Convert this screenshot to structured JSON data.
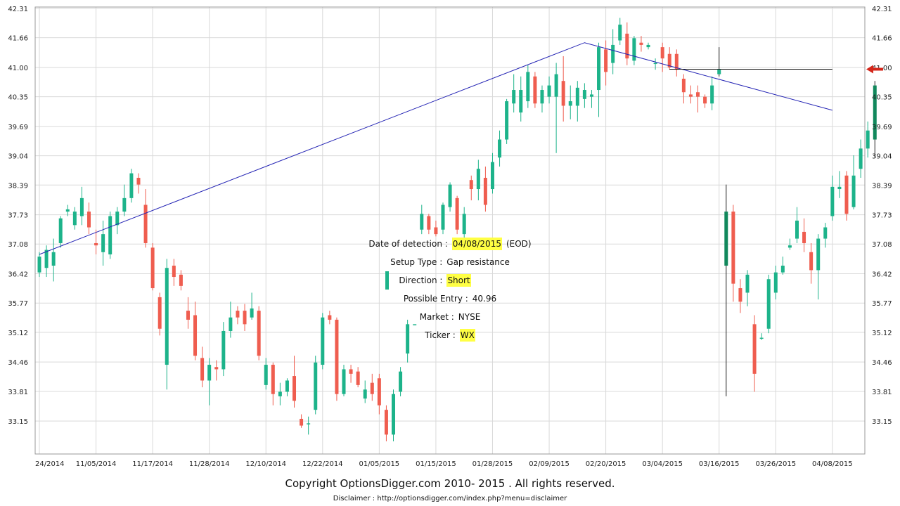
{
  "colors": {
    "up": "#1db38a",
    "down": "#ef5d4f",
    "line": "#2323b4",
    "grid": "#d9d9d9",
    "arrow": "#d4271b",
    "highlight": "#ffff44",
    "recent_up": "#11885c"
  },
  "info": {
    "date_label": "Date of detection :",
    "date_value": "04/08/2015",
    "date_suffix": "(EOD)",
    "setup_label": "Setup Type :",
    "setup_value": "Gap resistance",
    "direction_label": "Direction :",
    "direction_value": "Short",
    "entry_label": "Possible Entry :",
    "entry_value": "40.96",
    "market_label": "Market :",
    "market_value": "NYSE",
    "ticker_label": "Ticker :",
    "ticker_value": "WX"
  },
  "footer": {
    "copyright": "Copyright OptionsDigger.com 2010- 2015 . All rights reserved.",
    "disclaimer": "Disclaimer : http://optionsdigger.com/index.php?menu=disclaimer"
  },
  "chart_data": {
    "type": "candlestick",
    "title": "",
    "ylim": [
      32.5,
      42.31
    ],
    "y_ticks": [
      "42.31",
      "41.66",
      "41.00",
      "40.35",
      "39.69",
      "39.04",
      "38.39",
      "37.73",
      "37.08",
      "36.42",
      "35.77",
      "35.12",
      "34.46",
      "33.81",
      "33.15"
    ],
    "x_tick_labels": [
      "24/2014",
      "11/05/2014",
      "11/17/2014",
      "11/28/2014",
      "12/10/2014",
      "12/22/2014",
      "01/05/2015",
      "01/15/2015",
      "01/28/2015",
      "02/09/2015",
      "02/20/2015",
      "03/04/2015",
      "03/16/2015",
      "03/26/2015",
      "04/08/2015"
    ],
    "x_tick_index": [
      0,
      8,
      16,
      24,
      32,
      40,
      48,
      56,
      64,
      72,
      80,
      88,
      96,
      104,
      112
    ],
    "grid": true,
    "resistance_level": 40.96,
    "trendline": [
      [
        0,
        36.85
      ],
      [
        77,
        41.55
      ],
      [
        112,
        40.05
      ]
    ],
    "candles": [
      [
        36.45,
        36.8,
        36.9,
        36.35
      ],
      [
        36.55,
        36.95,
        37.05,
        36.35
      ],
      [
        36.6,
        36.9,
        37.2,
        36.25
      ],
      [
        37.1,
        37.65,
        37.7,
        37.0
      ],
      [
        37.8,
        37.85,
        37.95,
        37.7
      ],
      [
        37.5,
        37.8,
        37.9,
        37.4
      ],
      [
        37.7,
        38.1,
        38.35,
        37.5
      ],
      [
        37.8,
        37.45,
        38.0,
        37.3
      ],
      [
        37.1,
        37.05,
        37.4,
        36.85
      ],
      [
        36.9,
        37.3,
        37.6,
        36.6
      ],
      [
        36.85,
        37.7,
        37.8,
        36.75
      ],
      [
        37.5,
        37.8,
        37.9,
        37.3
      ],
      [
        37.8,
        38.1,
        38.4,
        37.7
      ],
      [
        38.1,
        38.65,
        38.75,
        38.0
      ],
      [
        38.55,
        38.4,
        38.65,
        38.2
      ],
      [
        37.95,
        37.1,
        38.3,
        37.0
      ],
      [
        37.0,
        36.1,
        37.1,
        36.05
      ],
      [
        35.9,
        35.2,
        36.0,
        35.05
      ],
      [
        34.4,
        36.55,
        36.75,
        33.85
      ],
      [
        36.6,
        36.35,
        36.75,
        36.15
      ],
      [
        36.4,
        36.15,
        36.5,
        36.05
      ],
      [
        35.6,
        35.4,
        35.9,
        35.2
      ],
      [
        35.5,
        34.6,
        35.8,
        34.5
      ],
      [
        34.55,
        34.05,
        34.8,
        33.9
      ],
      [
        34.05,
        34.4,
        34.55,
        33.5
      ],
      [
        34.35,
        34.3,
        34.5,
        34.05
      ],
      [
        34.3,
        35.15,
        35.35,
        34.15
      ],
      [
        35.15,
        35.45,
        35.8,
        35.0
      ],
      [
        35.6,
        35.45,
        35.7,
        35.3
      ],
      [
        35.6,
        35.3,
        35.75,
        35.15
      ],
      [
        35.45,
        35.65,
        36.0,
        35.4
      ],
      [
        35.6,
        34.6,
        35.7,
        34.5
      ],
      [
        33.95,
        34.4,
        34.55,
        33.85
      ],
      [
        34.4,
        33.75,
        34.45,
        33.5
      ],
      [
        33.7,
        33.8,
        34.0,
        33.5
      ],
      [
        33.8,
        34.05,
        34.1,
        33.7
      ],
      [
        34.15,
        33.6,
        34.6,
        33.45
      ],
      [
        33.2,
        33.05,
        33.3,
        33.0
      ],
      [
        33.1,
        33.1,
        33.25,
        32.85
      ],
      [
        33.4,
        34.45,
        34.6,
        33.3
      ],
      [
        34.4,
        35.45,
        35.55,
        34.3
      ],
      [
        35.5,
        35.4,
        35.6,
        35.3
      ],
      [
        35.4,
        33.75,
        35.45,
        33.6
      ],
      [
        33.75,
        34.3,
        34.4,
        33.7
      ],
      [
        34.3,
        34.2,
        34.4,
        34.0
      ],
      [
        34.25,
        33.95,
        34.35,
        33.9
      ],
      [
        33.65,
        33.85,
        34.05,
        33.55
      ],
      [
        34.0,
        33.75,
        34.2,
        33.6
      ],
      [
        34.1,
        33.5,
        34.2,
        33.3
      ],
      [
        33.4,
        32.85,
        33.5,
        32.7
      ],
      [
        32.85,
        33.75,
        33.85,
        32.7
      ],
      [
        33.8,
        34.25,
        34.35,
        33.7
      ],
      [
        34.65,
        35.3,
        35.4,
        34.45
      ],
      [
        35.3,
        35.3,
        35.3,
        35.3
      ],
      [
        37.4,
        37.75,
        37.95,
        37.3
      ],
      [
        37.7,
        37.4,
        37.75,
        37.3
      ],
      [
        37.45,
        37.3,
        37.6,
        37.25
      ],
      [
        37.4,
        37.95,
        38.0,
        37.3
      ],
      [
        37.9,
        38.4,
        38.45,
        37.8
      ],
      [
        38.1,
        37.4,
        38.15,
        37.3
      ],
      [
        37.3,
        37.75,
        37.9,
        37.2
      ],
      [
        38.5,
        38.3,
        38.6,
        38.05
      ],
      [
        38.3,
        38.75,
        38.95,
        38.05
      ],
      [
        38.55,
        37.95,
        38.8,
        37.8
      ],
      [
        38.3,
        38.9,
        39.1,
        38.2
      ],
      [
        39.0,
        39.4,
        39.6,
        38.8
      ],
      [
        39.4,
        40.25,
        40.3,
        39.3
      ],
      [
        40.2,
        40.5,
        40.85,
        40.0
      ],
      [
        40.0,
        40.5,
        40.8,
        39.8
      ],
      [
        40.25,
        40.9,
        41.05,
        40.1
      ],
      [
        40.8,
        40.2,
        40.9,
        40.1
      ],
      [
        40.2,
        40.5,
        40.6,
        40.0
      ],
      [
        40.35,
        40.6,
        40.8,
        40.2
      ],
      [
        40.35,
        40.85,
        41.1,
        39.1
      ],
      [
        40.7,
        40.15,
        41.25,
        39.8
      ],
      [
        40.15,
        40.25,
        40.6,
        39.85
      ],
      [
        40.15,
        40.55,
        40.7,
        39.8
      ],
      [
        40.3,
        40.5,
        40.65,
        40.1
      ],
      [
        40.35,
        40.4,
        40.5,
        40.1
      ],
      [
        40.5,
        41.45,
        41.55,
        39.9
      ],
      [
        41.4,
        40.9,
        41.6,
        40.6
      ],
      [
        41.1,
        41.5,
        41.85,
        40.85
      ],
      [
        41.6,
        41.95,
        42.1,
        41.5
      ],
      [
        41.75,
        41.2,
        42.0,
        41.05
      ],
      [
        41.15,
        41.65,
        41.7,
        41.05
      ],
      [
        41.55,
        41.5,
        41.7,
        41.35
      ],
      [
        41.45,
        41.5,
        41.55,
        41.4
      ],
      [
        41.1,
        41.1,
        41.2,
        40.95
      ],
      [
        41.45,
        41.2,
        41.55,
        40.9
      ],
      [
        41.3,
        41.0,
        41.45,
        40.95
      ],
      [
        41.3,
        40.95,
        41.4,
        40.8
      ],
      [
        40.75,
        40.45,
        40.85,
        40.2
      ],
      [
        40.4,
        40.35,
        40.6,
        40.2
      ],
      [
        40.45,
        40.35,
        40.6,
        40.0
      ],
      [
        40.35,
        40.2,
        40.4,
        40.1
      ],
      [
        40.2,
        40.6,
        40.8,
        40.05
      ],
      [
        40.85,
        40.95,
        41.45,
        40.8
      ],
      [
        37.8,
        36.6,
        38.4,
        33.7
      ],
      [
        37.8,
        36.2,
        37.95,
        35.8
      ],
      [
        36.1,
        35.8,
        36.3,
        35.55
      ],
      [
        36.0,
        36.4,
        36.5,
        35.7
      ],
      [
        35.3,
        34.2,
        35.5,
        33.8
      ],
      [
        35.0,
        35.0,
        35.1,
        34.95
      ],
      [
        35.2,
        36.3,
        36.4,
        35.1
      ],
      [
        36.0,
        36.45,
        36.6,
        35.85
      ],
      [
        36.45,
        36.6,
        36.8,
        36.4
      ],
      [
        37.0,
        37.05,
        37.2,
        36.95
      ],
      [
        37.2,
        37.6,
        37.9,
        37.1
      ],
      [
        37.35,
        37.1,
        37.65,
        36.9
      ],
      [
        36.9,
        36.5,
        37.1,
        36.2
      ],
      [
        36.5,
        37.2,
        37.3,
        35.85
      ],
      [
        37.2,
        37.45,
        37.55,
        37.0
      ],
      [
        37.7,
        38.35,
        38.6,
        37.6
      ],
      [
        38.3,
        38.35,
        38.7,
        38.1
      ],
      [
        38.6,
        37.75,
        38.7,
        37.6
      ],
      [
        37.9,
        38.6,
        39.05,
        37.85
      ],
      [
        38.75,
        39.2,
        39.4,
        38.55
      ],
      [
        39.2,
        39.6,
        39.8,
        39.0
      ],
      [
        39.4,
        40.6,
        40.7,
        39.0
      ]
    ]
  }
}
